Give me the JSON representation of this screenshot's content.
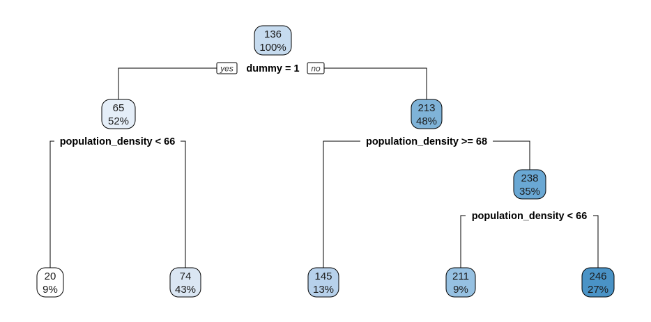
{
  "tree": {
    "branch_labels": {
      "yes": "yes",
      "no": "no"
    },
    "nodes": [
      {
        "id": "n1",
        "value": "136",
        "percent": "100%",
        "color": "#c6dbef"
      },
      {
        "id": "n2",
        "value": "65",
        "percent": "52%",
        "color": "#e5eef8"
      },
      {
        "id": "n3",
        "value": "213",
        "percent": "48%",
        "color": "#7fb3d8"
      },
      {
        "id": "n6",
        "value": "238",
        "percent": "35%",
        "color": "#6aa8d4"
      },
      {
        "id": "n4",
        "value": "20",
        "percent": "9%",
        "color": "#ffffff"
      },
      {
        "id": "n5",
        "value": "74",
        "percent": "43%",
        "color": "#dae6f3"
      },
      {
        "id": "n7",
        "value": "145",
        "percent": "13%",
        "color": "#b7d1eb"
      },
      {
        "id": "n12",
        "value": "211",
        "percent": "9%",
        "color": "#96c1e2"
      },
      {
        "id": "n13",
        "value": "246",
        "percent": "27%",
        "color": "#4a93c6"
      }
    ],
    "splits": [
      {
        "id": "s1",
        "label": "dummy = 1"
      },
      {
        "id": "s2",
        "label": "population_density < 66"
      },
      {
        "id": "s3",
        "label": "population_density >= 68"
      },
      {
        "id": "s6",
        "label": "population_density < 66"
      }
    ]
  }
}
